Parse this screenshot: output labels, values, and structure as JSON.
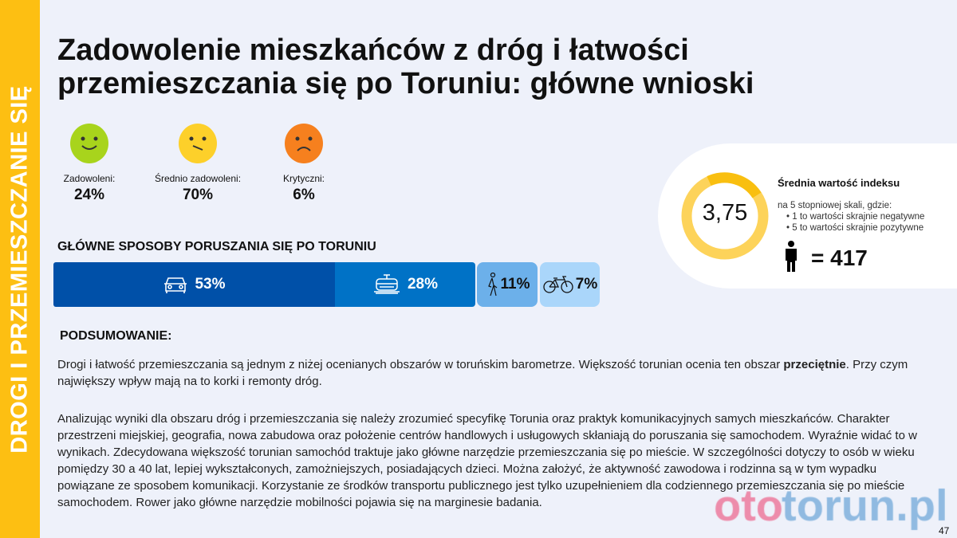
{
  "sidebar": {
    "label": "DROGI  I PRZEMIESZCZANIE SIĘ"
  },
  "title": " Zadowolenie mieszkańców z dróg i łatwości przemieszczania się po Toruniu: główne wnioski",
  "satisfaction": [
    {
      "label": "Zadowoleni:",
      "value": "24%",
      "color": "#a8d41c",
      "face": "smile"
    },
    {
      "label": "Średnio zadowoleni:",
      "value": "70%",
      "color": "#fdd02a",
      "face": "neutral"
    },
    {
      "label": "Krytyczni:",
      "value": "6%",
      "color": "#f6801e",
      "face": "frown"
    }
  ],
  "modes": {
    "heading": "GŁÓWNE SPOSOBY PORUSZANIA SIĘ PO TORUNIU",
    "items": [
      {
        "icon": "car-icon",
        "value": "53%",
        "share": 53,
        "color": "#0050a8"
      },
      {
        "icon": "tram-icon",
        "value": "28%",
        "share": 28,
        "color": "#0072c6"
      },
      {
        "icon": "pedestrian-icon",
        "value": "11%",
        "share": 11,
        "color": "#6cb0ea"
      },
      {
        "icon": "bicycle-icon",
        "value": "7%",
        "share": 7,
        "color": "#aad6fa"
      }
    ]
  },
  "index": {
    "value": "3,75",
    "title": "Średnia wartość indeksu",
    "intro": "na 5 stopniowej skali, gdzie:",
    "bullets": [
      "1 to wartości skrajnie negatywne",
      "5 to wartości skrajnie pozytywne"
    ],
    "sample": "= 417",
    "ring_color": "#fdd35a"
  },
  "summary": {
    "heading": "PODSUMOWANIE:",
    "p1_a": "Drogi i łatwość przemieszczania są jednym z niżej ocenianych obszarów w toruńskim barometrze. Większość torunian ocenia ten obszar ",
    "p1_bold": "przeciętnie",
    "p1_b": ". Przy czym największy wpływ mają na to korki i remonty dróg.",
    "p2": "Analizując wyniki dla obszaru dróg i przemieszczania się należy zrozumieć specyfikę Torunia oraz praktyk komunikacyjnych samych mieszkańców. Charakter przestrzeni miejskiej, geografia, nowa zabudowa oraz położenie centrów handlowych i usługowych skłaniają do poruszania się samochodem. Wyraźnie widać to w wynikach. Zdecydowana większość torunian samochód traktuje jako główne narzędzie przemieszczania się po mieście. W szczególności dotyczy to osób w wieku pomiędzy 30 a 40 lat, lepiej wykształconych, zamożniejszych, posiadających dzieci. Można założyć, że aktywność zawodowa i rodzinna są w tym wypadku powiązane ze sposobem komunikacji. Korzystanie ze środków transportu publicznego jest tylko uzupełnieniem dla codziennego przemieszczania się po mieście samochodem. Rower jako główne narzędzie mobilności pojawia się na marginesie badania."
  },
  "watermark": {
    "a": "oto",
    "b": "torun.pl"
  },
  "page_number": "47"
}
